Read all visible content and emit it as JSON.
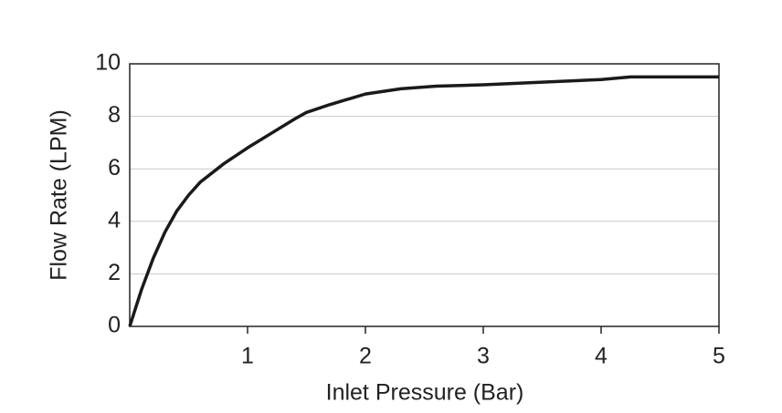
{
  "chart_data": {
    "type": "line",
    "x_label": "Inlet Pressure (Bar)",
    "y_label": "Flow Rate (LPM)",
    "x": [
      0,
      0.1,
      0.2,
      0.3,
      0.4,
      0.5,
      0.6,
      0.8,
      1.0,
      1.2,
      1.4,
      1.5,
      1.7,
      2.0,
      2.3,
      2.6,
      3.0,
      3.5,
      4.0,
      4.25,
      5.0
    ],
    "series": [
      {
        "color": "#1a1a1a",
        "values": [
          0,
          1.4,
          2.6,
          3.6,
          4.4,
          5.0,
          5.5,
          6.2,
          6.8,
          7.35,
          7.9,
          8.15,
          8.45,
          8.85,
          9.05,
          9.15,
          9.2,
          9.3,
          9.4,
          9.5,
          9.5
        ]
      }
    ],
    "xlim": [
      0,
      5
    ],
    "xticks": [
      1,
      2,
      3,
      4,
      5
    ],
    "ylim": [
      0,
      10
    ],
    "yticks": [
      0,
      2,
      4,
      6,
      8,
      10
    ],
    "grid": true
  }
}
